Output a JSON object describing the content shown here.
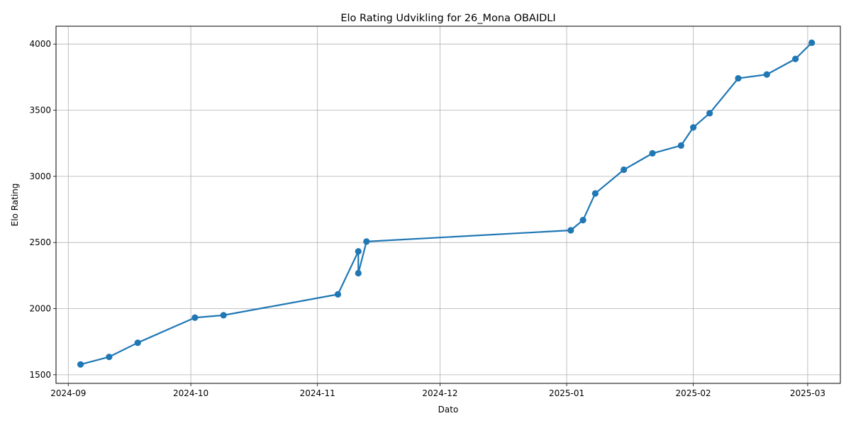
{
  "chart_data": {
    "type": "line",
    "title": "Elo Rating Udvikling for 26_Mona OBAIDLI",
    "xlabel": "Dato",
    "ylabel": "Elo Rating",
    "grid": true,
    "x_axis_type": "date",
    "xlim": [
      "2024-08-29",
      "2025-03-09"
    ],
    "ylim": [
      1435,
      4135
    ],
    "x_ticks": [
      "2024-09",
      "2024-10",
      "2024-11",
      "2024-12",
      "2025-01",
      "2025-02",
      "2025-03"
    ],
    "y_ticks": [
      1500,
      2000,
      2500,
      3000,
      3500,
      4000
    ],
    "series": [
      {
        "color": "#1f77b4",
        "marker": "circle",
        "points": [
          {
            "x": "2024-09-04",
            "y": 1578
          },
          {
            "x": "2024-09-11",
            "y": 1635
          },
          {
            "x": "2024-09-18",
            "y": 1742
          },
          {
            "x": "2024-10-02",
            "y": 1932
          },
          {
            "x": "2024-10-09",
            "y": 1950
          },
          {
            "x": "2024-11-06",
            "y": 2108
          },
          {
            "x": "2024-11-11",
            "y": 2433
          },
          {
            "x": "2024-11-11",
            "y": 2268
          },
          {
            "x": "2024-11-13",
            "y": 2507
          },
          {
            "x": "2025-01-02",
            "y": 2592
          },
          {
            "x": "2025-01-05",
            "y": 2669
          },
          {
            "x": "2025-01-08",
            "y": 2871
          },
          {
            "x": "2025-01-15",
            "y": 3050
          },
          {
            "x": "2025-01-22",
            "y": 3174
          },
          {
            "x": "2025-01-29",
            "y": 3233
          },
          {
            "x": "2025-02-01",
            "y": 3370
          },
          {
            "x": "2025-02-05",
            "y": 3477
          },
          {
            "x": "2025-02-12",
            "y": 3741
          },
          {
            "x": "2025-02-19",
            "y": 3770
          },
          {
            "x": "2025-02-26",
            "y": 3888
          },
          {
            "x": "2025-03-02",
            "y": 4010
          }
        ]
      }
    ]
  }
}
